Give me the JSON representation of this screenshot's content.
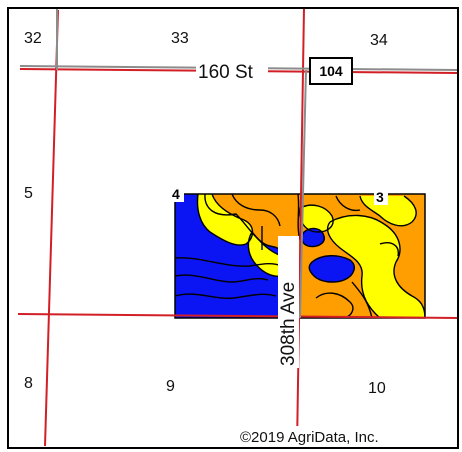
{
  "colors": {
    "frame": "#000000",
    "section_line": "#d21f26",
    "road_line": "#8c8c8c",
    "soil_blue": "#0b14f2",
    "soil_orange": "#ff9e00",
    "soil_yellow": "#ffff00",
    "soil_boundary": "#000000"
  },
  "sections": {
    "s32": "32",
    "s33": "33",
    "s34": "34",
    "s5": "5",
    "s8": "8",
    "s9": "9",
    "s10": "10"
  },
  "roads": {
    "street_160": "160 St",
    "route_shield": "104",
    "avenue_308": "308th Ave"
  },
  "corners": {
    "c4": "4",
    "c3": "3"
  },
  "credit": "©2019 AgriData, Inc."
}
